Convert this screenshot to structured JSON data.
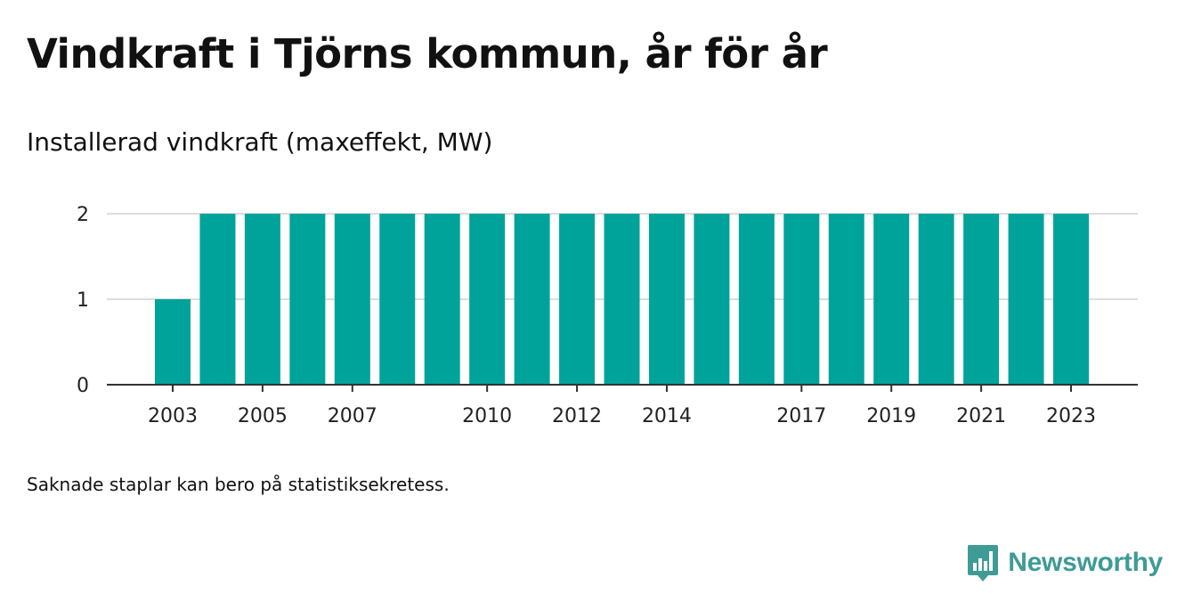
{
  "title": "Vindkraft i Tjörns kommun, år för år",
  "footnote": "Saknade staplar kan bero på statistiksekretess.",
  "brand": {
    "name": "Newsworthy",
    "logo_icon": "bar-chart-speech-bubble-icon",
    "color": "#3f9b95"
  },
  "chart_data": {
    "type": "bar",
    "title": "Vindkraft i Tjörns kommun, år för år",
    "ylabel": "Installerad vindkraft (maxeffekt, MW)",
    "xlabel": "",
    "categories": [
      "2003",
      "2004",
      "2005",
      "2006",
      "2007",
      "2008",
      "2009",
      "2010",
      "2011",
      "2012",
      "2013",
      "2014",
      "2015",
      "2016",
      "2017",
      "2018",
      "2019",
      "2020",
      "2021",
      "2022",
      "2023"
    ],
    "values": [
      1,
      2,
      2,
      2,
      2,
      2,
      2,
      2,
      2,
      2,
      2,
      2,
      2,
      2,
      2,
      2,
      2,
      2,
      2,
      2,
      2
    ],
    "x_tick_labels": [
      "2003",
      "2005",
      "2007",
      "2010",
      "2012",
      "2014",
      "2017",
      "2019",
      "2021",
      "2023"
    ],
    "y_ticks": [
      0,
      1,
      2
    ],
    "ylim": [
      0,
      2
    ],
    "grid": true,
    "bar_color": "#00a39a"
  }
}
